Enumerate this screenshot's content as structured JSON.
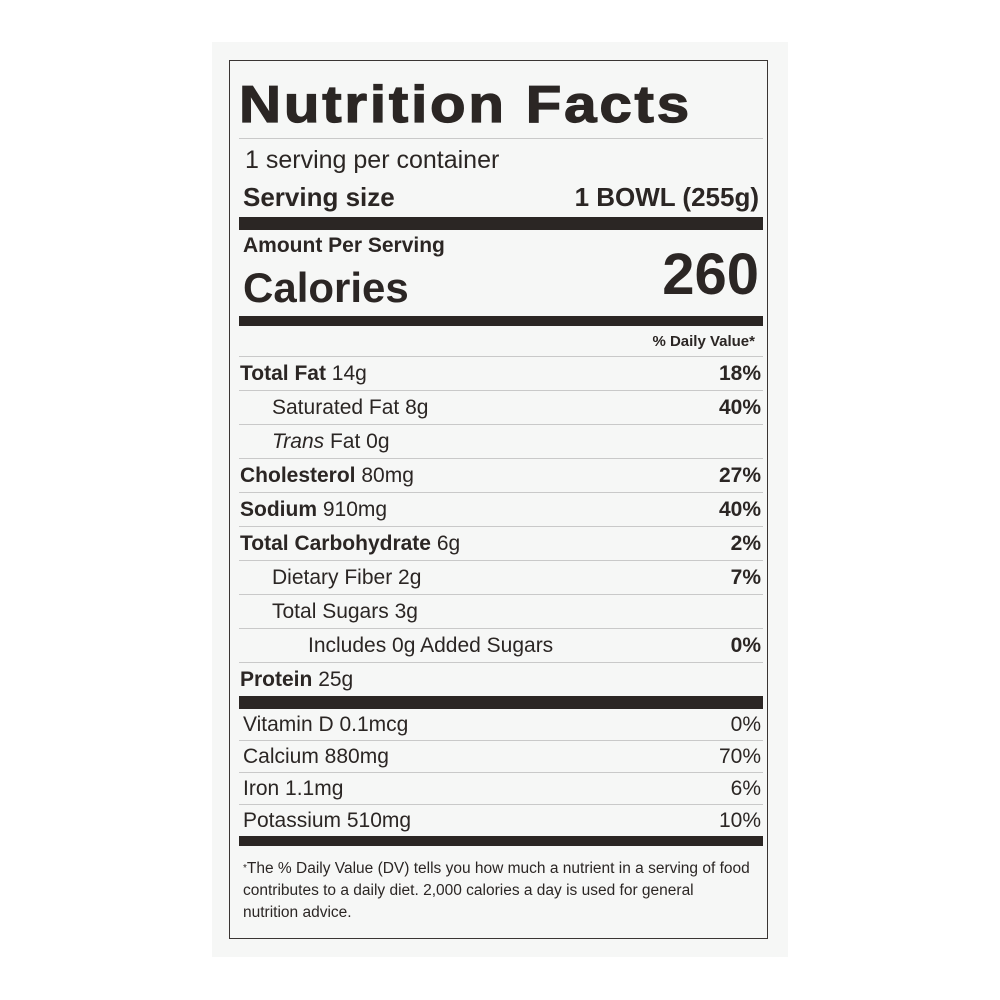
{
  "title": "Nutrition Facts",
  "servings_per_container": "1 serving per container",
  "serving_size": {
    "label": "Serving size",
    "value": "1 BOWL (255g)"
  },
  "amount_per_serving": "Amount Per Serving",
  "calories": {
    "label": "Calories",
    "value": "260"
  },
  "daily_value_header": "% Daily Value*",
  "nutrients": [
    {
      "name": "Total Fat",
      "amount": "14g",
      "dv": "18%",
      "bold": true,
      "indent": 0
    },
    {
      "name": "Saturated Fat",
      "amount": "8g",
      "dv": "40%",
      "bold": false,
      "indent": 1
    },
    {
      "name": "Trans",
      "name_suffix": "Fat",
      "amount": "0g",
      "dv": "",
      "bold": false,
      "indent": 1,
      "italic_prefix": true
    },
    {
      "name": "Cholesterol",
      "amount": "80mg",
      "dv": "27%",
      "bold": true,
      "indent": 0
    },
    {
      "name": "Sodium",
      "amount": "910mg",
      "dv": "40%",
      "bold": true,
      "indent": 0
    },
    {
      "name": "Total Carbohydrate",
      "amount": "6g",
      "dv": "2%",
      "bold": true,
      "indent": 0
    },
    {
      "name": "Dietary Fiber",
      "amount": "2g",
      "dv": "7%",
      "bold": false,
      "indent": 1
    },
    {
      "name": "Total Sugars",
      "amount": "3g",
      "dv": "",
      "bold": false,
      "indent": 1
    },
    {
      "name": "Includes 0g Added Sugars",
      "amount": "",
      "dv": "0%",
      "bold": false,
      "indent": 2
    },
    {
      "name": "Protein",
      "amount": "25g",
      "dv": "",
      "bold": true,
      "indent": 0
    }
  ],
  "vitamins": [
    {
      "name": "Vitamin D 0.1mcg",
      "dv": "0%"
    },
    {
      "name": "Calcium 880mg",
      "dv": "70%"
    },
    {
      "name": "Iron 1.1mg",
      "dv": "6%"
    },
    {
      "name": "Potassium 510mg",
      "dv": "10%"
    }
  ],
  "footnote": {
    "asterisk": "*",
    "text": "The % Daily Value (DV) tells you how much a nutrient in a serving of food contributes to a daily diet. 2,000 calories a day is used for general nutrition advice."
  }
}
